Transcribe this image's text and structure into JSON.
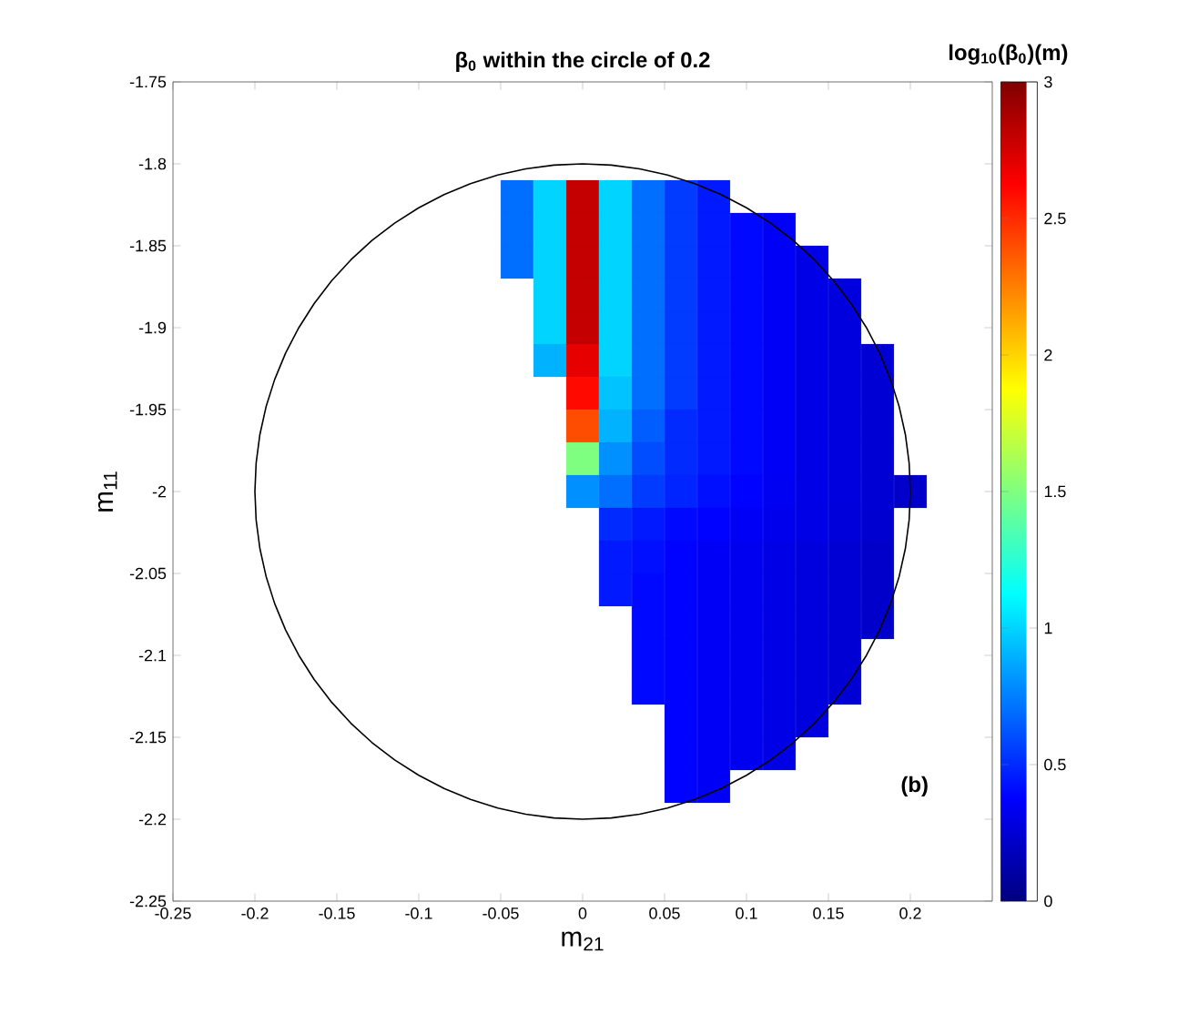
{
  "chart_data": {
    "type": "scatter",
    "title": "**β$_{0}$ within the circle of 0.2**",
    "xlabel": "m$_{21}$",
    "ylabel": "m$_{11}$",
    "clabel": "**log$_{10}$(β$_{0}$)(m)**",
    "annotations": [
      "**(b)**"
    ],
    "xlim": [
      -0.25,
      0.25
    ],
    "xticks": [
      -0.25,
      -0.2,
      -0.15,
      -0.1,
      -0.05,
      0,
      0.05,
      0.1,
      0.15,
      0.2
    ],
    "ylim": [
      -2.25,
      -1.75
    ],
    "yticks": [
      -2.25,
      -2.2,
      -2.15,
      -2.1,
      -2.05,
      -2,
      -1.95,
      -1.9,
      -1.85,
      -1.8,
      -1.75
    ],
    "clim": [
      0,
      3
    ],
    "cticks": [
      0,
      0.5,
      1,
      1.5,
      2,
      2.5,
      3
    ],
    "marker": "square",
    "x": [
      -0.04,
      -0.02,
      0,
      0.02,
      0.04,
      0.06,
      0.08,
      -0.04,
      -0.02,
      0,
      0.02,
      0.04,
      0.06,
      0.08,
      0.1,
      0.12,
      -0.04,
      -0.02,
      0,
      0.02,
      0.04,
      0.06,
      0.08,
      0.1,
      0.12,
      0.14,
      -0.02,
      0,
      0.02,
      0.04,
      0.06,
      0.08,
      0.1,
      0.12,
      0.14,
      0.16,
      -0.02,
      0,
      0.02,
      0.04,
      0.06,
      0.08,
      0.1,
      0.12,
      0.14,
      0.16,
      -0.02,
      0,
      0.02,
      0.04,
      0.06,
      0.08,
      0.1,
      0.12,
      0.14,
      0.16,
      0.18,
      0,
      0.02,
      0.04,
      0.06,
      0.08,
      0.1,
      0.12,
      0.14,
      0.16,
      0.18,
      0,
      0.02,
      0.04,
      0.06,
      0.08,
      0.1,
      0.12,
      0.14,
      0.16,
      0.18,
      0,
      0.02,
      0.04,
      0.06,
      0.08,
      0.1,
      0.12,
      0.14,
      0.16,
      0.18,
      0,
      0.02,
      0.04,
      0.06,
      0.08,
      0.1,
      0.12,
      0.14,
      0.16,
      0.18,
      0.2,
      0.02,
      0.04,
      0.06,
      0.08,
      0.1,
      0.12,
      0.14,
      0.16,
      0.18,
      0.02,
      0.04,
      0.06,
      0.08,
      0.1,
      0.12,
      0.14,
      0.16,
      0.18,
      0.02,
      0.04,
      0.06,
      0.08,
      0.1,
      0.12,
      0.14,
      0.16,
      0.18,
      0.04,
      0.06,
      0.08,
      0.1,
      0.12,
      0.14,
      0.16,
      0.18,
      0.04,
      0.06,
      0.08,
      0.1,
      0.12,
      0.14,
      0.16,
      0.04,
      0.06,
      0.08,
      0.1,
      0.12,
      0.14,
      0.16,
      0.06,
      0.08,
      0.1,
      0.12,
      0.14,
      0.06,
      0.08,
      0.1,
      0.12,
      0.06,
      0.08
    ],
    "values": [
      -1.82,
      -1.82,
      -1.82,
      -1.82,
      -1.82,
      -1.82,
      -1.82,
      -1.84,
      -1.84,
      -1.84,
      -1.84,
      -1.84,
      -1.84,
      -1.84,
      -1.84,
      -1.84,
      -1.86,
      -1.86,
      -1.86,
      -1.86,
      -1.86,
      -1.86,
      -1.86,
      -1.86,
      -1.86,
      -1.86,
      -1.88,
      -1.88,
      -1.88,
      -1.88,
      -1.88,
      -1.88,
      -1.88,
      -1.88,
      -1.88,
      -1.88,
      -1.9,
      -1.9,
      -1.9,
      -1.9,
      -1.9,
      -1.9,
      -1.9,
      -1.9,
      -1.9,
      -1.9,
      -1.92,
      -1.92,
      -1.92,
      -1.92,
      -1.92,
      -1.92,
      -1.92,
      -1.92,
      -1.92,
      -1.92,
      -1.92,
      -1.94,
      -1.94,
      -1.94,
      -1.94,
      -1.94,
      -1.94,
      -1.94,
      -1.94,
      -1.94,
      -1.94,
      -1.96,
      -1.96,
      -1.96,
      -1.96,
      -1.96,
      -1.96,
      -1.96,
      -1.96,
      -1.96,
      -1.96,
      -1.98,
      -1.98,
      -1.98,
      -1.98,
      -1.98,
      -1.98,
      -1.98,
      -1.98,
      -1.98,
      -1.98,
      -2,
      -2,
      -2,
      -2,
      -2,
      -2,
      -2,
      -2,
      -2,
      -2,
      -2,
      -2.02,
      -2.02,
      -2.02,
      -2.02,
      -2.02,
      -2.02,
      -2.02,
      -2.02,
      -2.02,
      -2.04,
      -2.04,
      -2.04,
      -2.04,
      -2.04,
      -2.04,
      -2.04,
      -2.04,
      -2.04,
      -2.06,
      -2.06,
      -2.06,
      -2.06,
      -2.06,
      -2.06,
      -2.06,
      -2.06,
      -2.06,
      -2.08,
      -2.08,
      -2.08,
      -2.08,
      -2.08,
      -2.08,
      -2.08,
      -2.08,
      -2.1,
      -2.1,
      -2.1,
      -2.1,
      -2.1,
      -2.1,
      -2.1,
      -2.12,
      -2.12,
      -2.12,
      -2.12,
      -2.12,
      -2.12,
      -2.12,
      -2.14,
      -2.14,
      -2.14,
      -2.14,
      -2.14,
      -2.16,
      -2.16,
      -2.16,
      -2.16,
      -2.18,
      -2.18
    ],
    "cvalues": [
      0.7,
      1.0,
      2.8,
      1.0,
      0.7,
      0.55,
      0.45,
      0.7,
      1.0,
      2.8,
      1.0,
      0.7,
      0.55,
      0.45,
      0.4,
      0.35,
      0.7,
      1.0,
      2.8,
      1.0,
      0.7,
      0.55,
      0.45,
      0.4,
      0.35,
      0.3,
      1.0,
      2.8,
      1.0,
      0.7,
      0.55,
      0.45,
      0.4,
      0.35,
      0.3,
      0.28,
      1.0,
      2.8,
      1.0,
      0.7,
      0.55,
      0.45,
      0.4,
      0.35,
      0.3,
      0.28,
      0.9,
      2.7,
      1.0,
      0.7,
      0.55,
      0.45,
      0.4,
      0.35,
      0.3,
      0.28,
      0.25,
      2.6,
      0.95,
      0.7,
      0.55,
      0.45,
      0.4,
      0.35,
      0.3,
      0.28,
      0.25,
      2.4,
      0.9,
      0.65,
      0.5,
      0.45,
      0.4,
      0.35,
      0.3,
      0.28,
      0.25,
      1.5,
      0.8,
      0.6,
      0.5,
      0.45,
      0.4,
      0.35,
      0.3,
      0.28,
      0.25,
      0.8,
      0.7,
      0.55,
      0.48,
      0.42,
      0.38,
      0.34,
      0.3,
      0.28,
      0.25,
      0.22,
      0.5,
      0.45,
      0.4,
      0.38,
      0.35,
      0.32,
      0.3,
      0.27,
      0.24,
      0.45,
      0.42,
      0.38,
      0.35,
      0.33,
      0.3,
      0.28,
      0.25,
      0.22,
      0.45,
      0.4,
      0.38,
      0.35,
      0.33,
      0.3,
      0.28,
      0.25,
      0.22,
      0.4,
      0.38,
      0.35,
      0.33,
      0.3,
      0.28,
      0.25,
      0.22,
      0.4,
      0.38,
      0.35,
      0.33,
      0.3,
      0.28,
      0.25,
      0.4,
      0.38,
      0.35,
      0.33,
      0.3,
      0.28,
      0.25,
      0.38,
      0.35,
      0.33,
      0.3,
      0.28,
      0.38,
      0.35,
      0.33,
      0.3,
      0.38,
      0.35
    ]
  }
}
